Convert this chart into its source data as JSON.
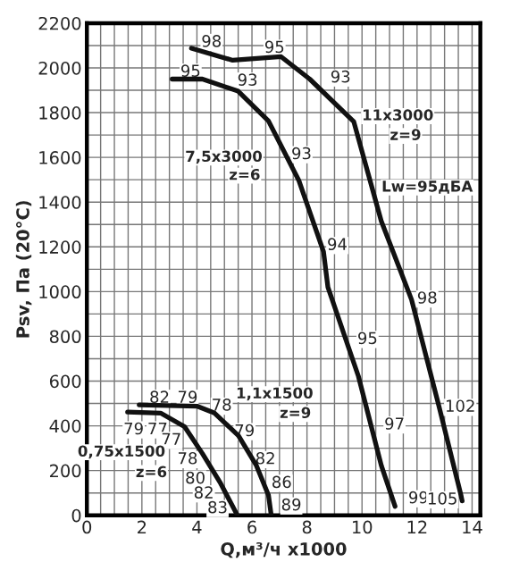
{
  "chart_data": {
    "type": "line",
    "xlabel": "Q,м³/ч x1000",
    "ylabel": "Psv, Па (20°C)",
    "xlim": [
      0,
      14.3
    ],
    "ylim": [
      0,
      2200
    ],
    "xticks": [
      0,
      {
        "value": 0.5,
        "label": null
      },
      2,
      {
        "value": 1,
        "label": null
      },
      {
        "value": 1.5,
        "label": null
      },
      {
        "value": 2.5,
        "label": null
      },
      {
        "value": 3,
        "label": null
      },
      {
        "value": 3.5,
        "label": null
      },
      4,
      {
        "value": 4.5,
        "label": null
      },
      {
        "value": 5,
        "label": null
      },
      {
        "value": 5.5,
        "label": null
      },
      6,
      {
        "value": 6.5,
        "label": null
      },
      {
        "value": 7,
        "label": null
      },
      {
        "value": 7.5,
        "label": null
      },
      8,
      {
        "value": 8.5,
        "label": null
      },
      {
        "value": 9,
        "label": null
      },
      {
        "value": 9.5,
        "label": null
      },
      10,
      {
        "value": 10.5,
        "label": null
      },
      {
        "value": 11,
        "label": null
      },
      {
        "value": 11.5,
        "label": null
      },
      12,
      {
        "value": 12.5,
        "label": null
      },
      {
        "value": 13,
        "label": null
      },
      {
        "value": 13.5,
        "label": null
      },
      14
    ],
    "yticks": [
      0,
      {
        "value": 100,
        "label": null
      },
      200,
      {
        "value": 300,
        "label": null
      },
      400,
      {
        "value": 500,
        "label": null
      },
      600,
      {
        "value": 700,
        "label": null
      },
      800,
      {
        "value": 900,
        "label": null
      },
      1000,
      {
        "value": 1100,
        "label": null
      },
      1200,
      {
        "value": 1300,
        "label": null
      },
      1400,
      {
        "value": 1500,
        "label": null
      },
      1600,
      {
        "value": 1700,
        "label": null
      },
      1800,
      {
        "value": 1900,
        "label": null
      },
      2000,
      {
        "value": 2100,
        "label": null
      },
      2200
    ],
    "grid": true,
    "legend": false,
    "marker": "none",
    "line_style": "solid",
    "series": [
      {
        "color": "#111111",
        "x": [
          3.8,
          5.3,
          7.06,
          8.1,
          9.7,
          10.7,
          11.8,
          12.8,
          13.6,
          13.64
        ],
        "values": [
          2088,
          2034,
          2050,
          1950,
          1760,
          1315,
          964,
          486,
          88,
          64
        ]
      },
      {
        "color": "#111111",
        "x": [
          3.1,
          4.2,
          5.5,
          6.6,
          7.7,
          8.6,
          8.76,
          9.87,
          10.7,
          11.2
        ],
        "values": [
          1950,
          1950,
          1896,
          1763,
          1498,
          1179,
          1020,
          621,
          223,
          40
        ]
      },
      {
        "color": "#111111",
        "x": [
          1.9,
          4.0,
          4.64,
          5.51,
          6.16,
          6.6,
          6.7
        ],
        "values": [
          494,
          488,
          457,
          356,
          223,
          90,
          0
        ]
      },
      {
        "color": "#111111",
        "x": [
          1.48,
          2.68,
          3.55,
          4.2,
          4.86,
          5.47
        ],
        "values": [
          462,
          457,
          396,
          276,
          143,
          0
        ]
      }
    ],
    "annotations": [
      {
        "text": "98",
        "x": 4.53,
        "y": 2114
      },
      {
        "text": "95",
        "x": 6.82,
        "y": 2088
      },
      {
        "text": "95",
        "x": 3.77,
        "y": 1981
      },
      {
        "text": "93",
        "x": 5.84,
        "y": 1941
      },
      {
        "text": "93",
        "x": 9.22,
        "y": 1955
      },
      "11x3000",
      "z=9",
      "7,5x3000",
      "z=6",
      {
        "text": "93",
        "x": 7.8,
        "y": 1612
      },
      "Lw=95дБА",
      {
        "text": "94",
        "x": 9.1,
        "y": 1206
      },
      {
        "text": "98",
        "x": 12.37,
        "y": 967
      },
      {
        "text": "95",
        "x": 10.2,
        "y": 786
      },
      {
        "text": "97",
        "x": 11.18,
        "y": 404
      },
      {
        "text": "102",
        "x": 13.57,
        "y": 483
      },
      {
        "text": "99",
        "x": 12.05,
        "y": 74
      },
      {
        "text": "105",
        "x": 12.92,
        "y": 69
      },
      "1,1x1500",
      "z=9",
      {
        "text": "82",
        "x": 2.64,
        "y": 523
      },
      {
        "text": "79",
        "x": 3.66,
        "y": 523
      },
      {
        "text": "78",
        "x": 4.9,
        "y": 488
      },
      {
        "text": "79",
        "x": 5.73,
        "y": 374
      },
      {
        "text": "82",
        "x": 6.49,
        "y": 249
      },
      {
        "text": "86",
        "x": 7.08,
        "y": 143
      },
      {
        "text": "89",
        "x": 7.43,
        "y": 42
      },
      {
        "text": "79",
        "x": 1.7,
        "y": 382
      },
      {
        "text": "77",
        "x": 2.57,
        "y": 382
      },
      {
        "text": "77",
        "x": 3.07,
        "y": 335
      },
      "0,75x1500",
      {
        "text": "78",
        "x": 3.66,
        "y": 249
      },
      "z=6",
      {
        "text": "80",
        "x": 3.94,
        "y": 162
      },
      {
        "text": "82",
        "x": 4.25,
        "y": 96
      },
      {
        "text": "83",
        "x": 4.75,
        "y": 30
      }
    ]
  }
}
